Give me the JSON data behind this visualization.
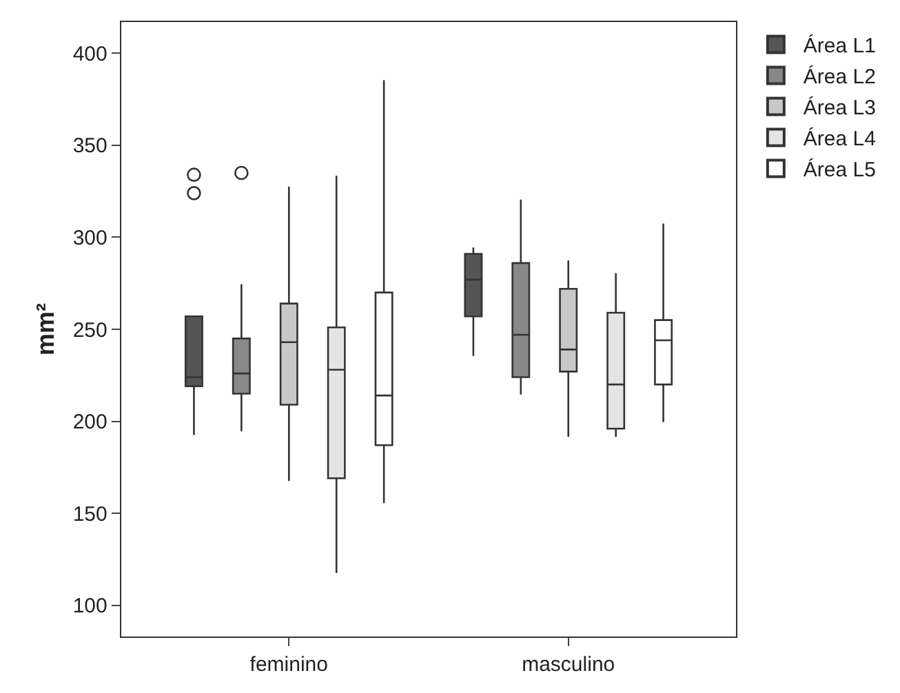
{
  "chart_data": {
    "type": "box",
    "ylabel": "mm²",
    "categories": [
      "feminino",
      "masculino"
    ],
    "ylim": [
      83,
      417
    ],
    "yticks": [
      100,
      150,
      200,
      250,
      300,
      350,
      400
    ],
    "legend": "top right",
    "marker": "circle",
    "series": [
      {
        "name": "Área L1",
        "color": "#555555",
        "boxes": [
          {
            "low": 193,
            "q1": 219,
            "median": 224,
            "q3": 257,
            "high": 257,
            "outliers": [
              334,
              324
            ]
          },
          {
            "low": 236,
            "q1": 257,
            "median": 277,
            "q3": 291,
            "high": 294
          }
        ]
      },
      {
        "name": "Área L2",
        "color": "#888888",
        "boxes": [
          {
            "low": 195,
            "q1": 215,
            "median": 226,
            "q3": 245,
            "high": 274,
            "outliers": [
              335
            ]
          },
          {
            "low": 215,
            "q1": 224,
            "median": 247,
            "q3": 286,
            "high": 320
          }
        ]
      },
      {
        "name": "Área L3",
        "color": "#c8c8c8",
        "boxes": [
          {
            "low": 168,
            "q1": 209,
            "median": 243,
            "q3": 264,
            "high": 327
          },
          {
            "low": 192,
            "q1": 227,
            "median": 239,
            "q3": 272,
            "high": 287
          }
        ]
      },
      {
        "name": "Área L4",
        "color": "#e4e4e4",
        "boxes": [
          {
            "low": 118,
            "q1": 169,
            "median": 228,
            "q3": 251,
            "high": 333
          },
          {
            "low": 192,
            "q1": 196,
            "median": 220,
            "q3": 259,
            "high": 280
          }
        ]
      },
      {
        "name": "Área L5",
        "color": "#ffffff",
        "boxes": [
          {
            "low": 156,
            "q1": 187,
            "median": 214,
            "q3": 270,
            "high": 385
          },
          {
            "low": 200,
            "q1": 220,
            "median": 244,
            "q3": 255,
            "high": 307
          }
        ]
      }
    ]
  }
}
